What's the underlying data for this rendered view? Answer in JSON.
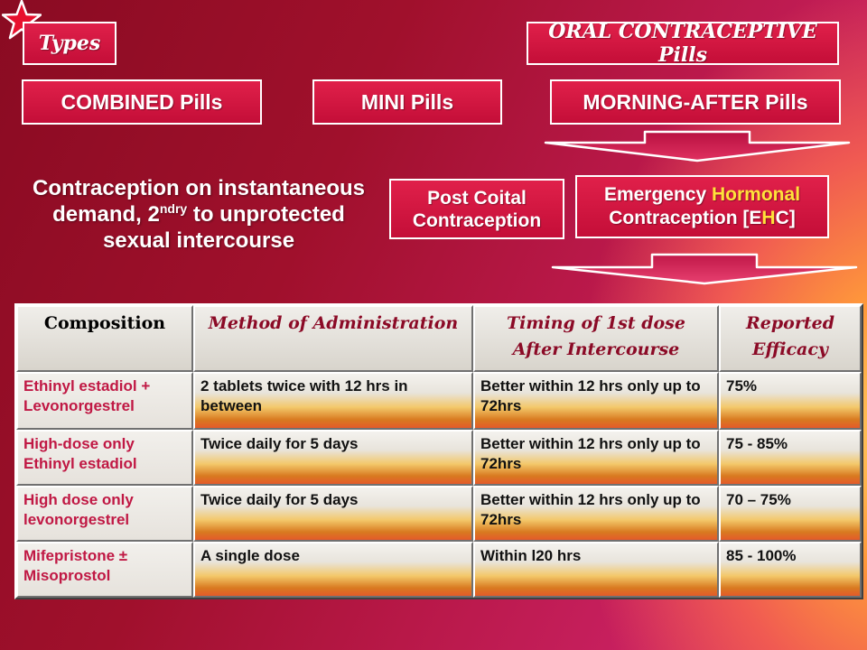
{
  "header": {
    "types_label": "Types",
    "title": "ORAL CONTRACEPTIVE Pills"
  },
  "categories": {
    "combined": "COMBINED Pills",
    "mini": "MINI Pills",
    "morning_after": "MORNING-AFTER  Pills"
  },
  "description": {
    "line1": "Contraception on instantaneous",
    "line2_a": "demand, 2",
    "line2_sup": "ndry",
    "line2_b": " to unprotected",
    "line3": "sexual intercourse"
  },
  "post_coital": {
    "line1": "Post Coital",
    "line2": "Contraception"
  },
  "ehc": {
    "part1": "Emergency ",
    "highlight": "Hormonal",
    "line2_a": "Contraception [E",
    "line2_h": "H",
    "line2_b": "C]"
  },
  "colors": {
    "highlight_yellow": "#ffe23a",
    "header_red": "#8b0a26",
    "composition_text": "#c01844"
  },
  "table": {
    "headers": [
      "Composition",
      "Method of Administration",
      "Timing of 1st dose  After Intercourse",
      "Reported Efficacy"
    ],
    "rows": [
      {
        "composition": "Ethinyl estadiol + Levonorgestrel",
        "method": "2 tablets twice with 12 hrs in between",
        "timing": "Better within 12 hrs only up to 72hrs",
        "efficacy": "75%"
      },
      {
        "composition": "High-dose only Ethinyl estadiol",
        "method": "Twice daily for 5 days",
        "timing": "Better within 12 hrs only up to 72hrs",
        "efficacy": "75 - 85%"
      },
      {
        "composition": "High dose only levonorgestrel",
        "method": "Twice daily for 5 days",
        "timing": "Better within 12 hrs only up to 72hrs",
        "efficacy": "70 – 75%"
      },
      {
        "composition": "Mifepristone ± Misoprostol",
        "method": "A single dose",
        "timing": "Within l20 hrs",
        "efficacy": "85 - 100%"
      }
    ]
  }
}
